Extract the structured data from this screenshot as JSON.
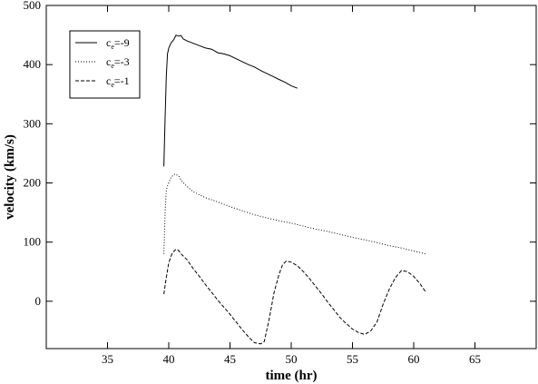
{
  "chart_data": {
    "type": "line",
    "xlabel": "time (hr)",
    "ylabel": "velocity (km/s)",
    "xlim": [
      30,
      70
    ],
    "ylim": [
      -80,
      500
    ],
    "xticks": [
      35,
      40,
      45,
      50,
      55,
      60,
      65
    ],
    "yticks": [
      0,
      100,
      200,
      300,
      400,
      500
    ],
    "grid": false,
    "legend_position": "top-left",
    "series": [
      {
        "name": "c_e=-9",
        "label_main": "c",
        "label_sub": "e",
        "label_rest": "=-9",
        "style": "solid",
        "x": [
          39.6,
          39.7,
          39.8,
          39.9,
          40.0,
          40.2,
          40.4,
          40.6,
          40.8,
          41.0,
          41.2,
          41.5,
          42.0,
          42.5,
          43.0,
          43.5,
          44.0,
          44.5,
          45.0,
          45.5,
          46.0,
          46.5,
          47.0,
          47.5,
          48.0,
          48.5,
          49.0,
          49.5,
          50.0,
          50.5
        ],
        "y": [
          228,
          310,
          380,
          418,
          428,
          437,
          442,
          450,
          448,
          449,
          443,
          440,
          436,
          432,
          428,
          426,
          420,
          418,
          415,
          410,
          405,
          400,
          396,
          390,
          385,
          380,
          375,
          370,
          364,
          360
        ]
      },
      {
        "name": "c_e=-3",
        "label_main": "c",
        "label_sub": "e",
        "label_rest": "=-3",
        "style": "dotted",
        "x": [
          39.6,
          39.7,
          39.8,
          39.9,
          40.0,
          40.2,
          40.5,
          40.8,
          41.0,
          41.3,
          41.6,
          42.0,
          42.5,
          43.0,
          44.0,
          45.0,
          46.0,
          47.0,
          48.0,
          49.0,
          50.0,
          51.0,
          52.0,
          53.0,
          54.0,
          55.0,
          56.0,
          57.0,
          58.0,
          59.0,
          60.0,
          61.0
        ],
        "y": [
          80,
          150,
          188,
          195,
          200,
          210,
          215,
          212,
          205,
          198,
          192,
          185,
          180,
          175,
          168,
          160,
          153,
          146,
          141,
          136,
          132,
          127,
          122,
          118,
          113,
          108,
          104,
          99,
          94,
          90,
          85,
          80
        ]
      },
      {
        "name": "c_e=-1",
        "label_main": "c",
        "label_sub": "e",
        "label_rest": "=-1",
        "style": "dashed",
        "x": [
          39.6,
          39.8,
          40.0,
          40.3,
          40.6,
          40.8,
          41.0,
          41.5,
          42.0,
          42.5,
          43.0,
          43.5,
          44.0,
          44.5,
          45.0,
          45.5,
          46.0,
          46.5,
          47.0,
          47.5,
          47.8,
          48.2,
          48.6,
          49.0,
          49.3,
          49.6,
          50.0,
          50.5,
          51.0,
          51.5,
          52.0,
          52.5,
          53.0,
          53.5,
          54.0,
          54.5,
          55.0,
          55.5,
          56.0,
          56.5,
          57.0,
          57.5,
          58.0,
          58.5,
          59.0,
          59.5,
          60.0,
          60.5,
          61.0
        ],
        "y": [
          12,
          40,
          65,
          82,
          88,
          86,
          80,
          70,
          55,
          42,
          28,
          15,
          2,
          -10,
          -22,
          -35,
          -48,
          -60,
          -70,
          -72,
          -68,
          -30,
          15,
          45,
          62,
          68,
          66,
          60,
          50,
          38,
          25,
          12,
          -2,
          -15,
          -28,
          -38,
          -47,
          -53,
          -56,
          -50,
          -35,
          -5,
          20,
          40,
          52,
          50,
          42,
          30,
          15
        ]
      }
    ]
  }
}
